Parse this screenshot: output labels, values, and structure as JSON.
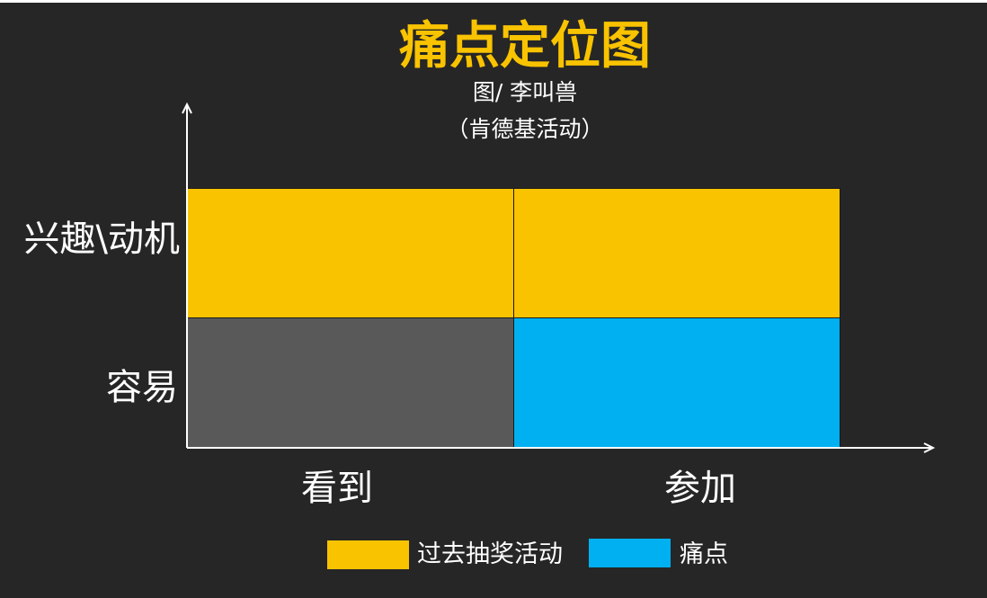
{
  "title": "痛点定位图",
  "subtitle": "图/ 李叫兽",
  "subtitle2": "（肯德基活动）",
  "colors": {
    "background": "#262626",
    "title": "#f9c300",
    "yellow": "#f9c300",
    "gray": "#595959",
    "blue": "#00b0f0",
    "axis": "#ffffff"
  },
  "y_labels": [
    "兴趣\\动机",
    "容易"
  ],
  "x_labels": [
    "看到",
    "参加"
  ],
  "legend": [
    {
      "label": "过去抽奖活动",
      "color": "#f9c300"
    },
    {
      "label": "痛点",
      "color": "#00b0f0"
    }
  ],
  "grid": {
    "rows": [
      "兴趣\\动机",
      "容易"
    ],
    "cols": [
      "看到",
      "参加"
    ],
    "cells": [
      [
        "过去抽奖活动",
        "过去抽奖活动"
      ],
      [
        "",
        "痛点"
      ]
    ]
  }
}
